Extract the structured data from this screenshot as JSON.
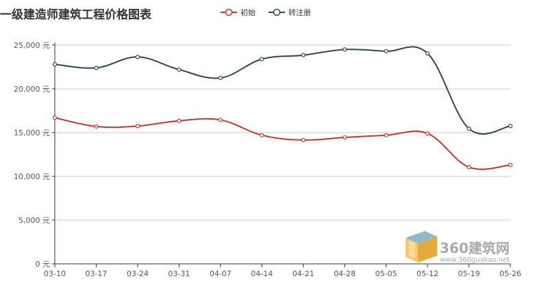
{
  "chart_data": {
    "type": "line",
    "title": "一级建造师建筑工程价格图表",
    "categories": [
      "03-10",
      "03-17",
      "03-24",
      "03-31",
      "04-07",
      "04-14",
      "04-21",
      "04-28",
      "05-05",
      "05-12",
      "05-19",
      "05-26"
    ],
    "series": [
      {
        "name": "初始",
        "color": "#c23531",
        "values": [
          16700,
          15700,
          15750,
          16350,
          16450,
          14700,
          14150,
          14450,
          14700,
          14900,
          11050,
          11300
        ]
      },
      {
        "name": "转注册",
        "color": "#2f4554",
        "values": [
          22800,
          22400,
          23650,
          22200,
          21250,
          23400,
          23850,
          24500,
          24300,
          24050,
          15450,
          15750
        ]
      }
    ],
    "ylim": [
      0,
      25000
    ],
    "yticks": [
      0,
      5000,
      10000,
      15000,
      20000,
      25000
    ],
    "ytick_labels": [
      "0 元",
      "5,000 元",
      "10,000 元",
      "15,000 元",
      "20,000 元",
      "25,000 元"
    ],
    "grid": true,
    "legend_position": "top"
  },
  "watermark": {
    "brand": "360建筑网",
    "url": "www.360guakao.net"
  }
}
